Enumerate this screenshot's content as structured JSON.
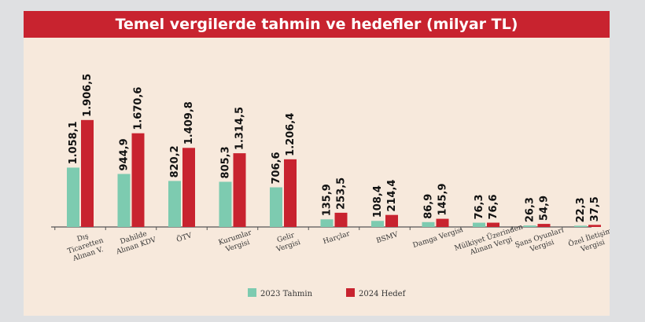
{
  "chart_data": {
    "type": "bar",
    "title": "Temel vergilerde tahmin ve hedefler (milyar TL)",
    "categories": [
      [
        "Dış",
        "Ticaretten",
        "Alınan V."
      ],
      [
        "Dahilde",
        "Alınan KDV"
      ],
      [
        "ÖTV"
      ],
      [
        "Kurumlar",
        "Vergisi"
      ],
      [
        "Gelir",
        "Vergisi"
      ],
      [
        "Harçlar"
      ],
      [
        "BSMV"
      ],
      [
        "Damga Vergisi"
      ],
      [
        "Mülkiyet Üzerinden",
        "Alınan Vergi"
      ],
      [
        "Şans Oyunları",
        "Vergisi"
      ],
      [
        "Özel İletişim",
        "Vergisi"
      ]
    ],
    "series": [
      {
        "name": "2023 Tahmin",
        "color": "#7dcbb0",
        "values": [
          1058.1,
          944.9,
          820.2,
          805.3,
          706.6,
          135.9,
          108.4,
          86.9,
          76.3,
          26.3,
          22.3
        ],
        "labels": [
          "1.058,1",
          "944,9",
          "820,2",
          "805,3",
          "706,6",
          "135,9",
          "108,4",
          "86,9",
          "76,3",
          "26,3",
          "22,3"
        ]
      },
      {
        "name": "2024 Hedef",
        "color": "#c8232f",
        "values": [
          1906.5,
          1670.6,
          1409.8,
          1314.5,
          1206.4,
          253.5,
          214.4,
          145.9,
          76.6,
          54.9,
          37.5
        ],
        "labels": [
          "1.906,5",
          "1.670,6",
          "1.409,8",
          "1.314,5",
          "1.206,4",
          "253,5",
          "214,4",
          "145,9",
          "76,6",
          "54,9",
          "37,5"
        ]
      }
    ],
    "ylim": [
      0,
      2100
    ],
    "grid": false,
    "legend_position": "bottom-center",
    "title_bar_color": "#c8232f",
    "background_color": "#f7e9dc"
  }
}
